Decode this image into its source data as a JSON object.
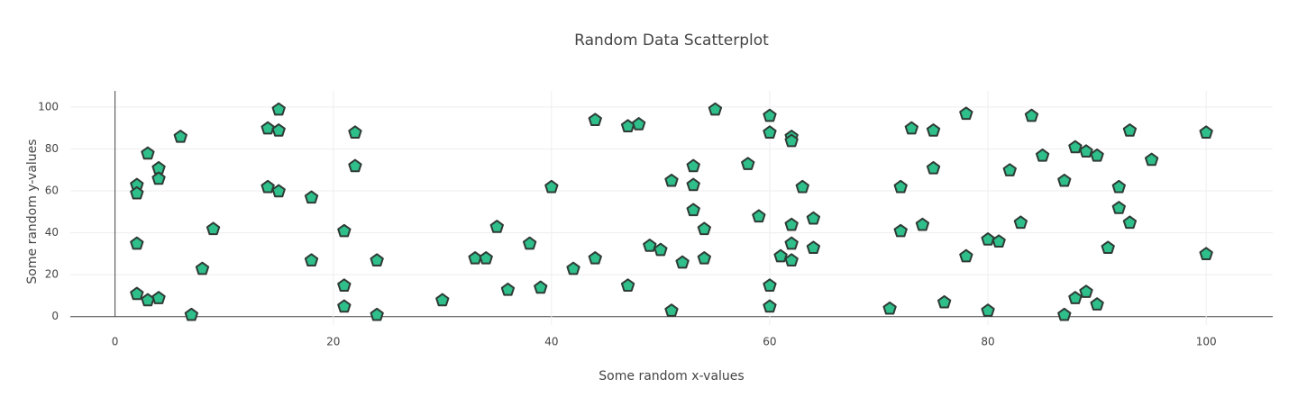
{
  "chart_data": {
    "type": "scatter",
    "title": "Random Data Scatterplot",
    "x_label": "Some random x-values",
    "y_label": "Some random y-values",
    "x": [
      2,
      2,
      2,
      2,
      3,
      3,
      4,
      4,
      4,
      6,
      7,
      8,
      9,
      14,
      14,
      15,
      15,
      15,
      18,
      18,
      21,
      21,
      21,
      22,
      22,
      24,
      24,
      30,
      33,
      34,
      35,
      36,
      38,
      39,
      40,
      42,
      44,
      44,
      47,
      47,
      48,
      49,
      50,
      51,
      51,
      52,
      53,
      53,
      53,
      54,
      54,
      55,
      58,
      59,
      60,
      60,
      60,
      60,
      61,
      62,
      62,
      62,
      62,
      62,
      63,
      64,
      64,
      71,
      72,
      72,
      73,
      74,
      75,
      75,
      76,
      78,
      78,
      80,
      80,
      81,
      82,
      83,
      84,
      85,
      87,
      87,
      88,
      88,
      89,
      89,
      90,
      90,
      91,
      92,
      92,
      93,
      93,
      95,
      100,
      100
    ],
    "values": [
      63,
      59,
      35,
      11,
      78,
      8,
      71,
      66,
      9,
      86,
      1,
      23,
      42,
      90,
      62,
      99,
      89,
      60,
      57,
      27,
      41,
      15,
      5,
      88,
      72,
      27,
      1,
      8,
      28,
      28,
      43,
      13,
      35,
      14,
      62,
      23,
      94,
      28,
      91,
      15,
      92,
      34,
      32,
      65,
      3,
      26,
      72,
      63,
      51,
      42,
      28,
      99,
      73,
      48,
      96,
      88,
      15,
      5,
      29,
      86,
      84,
      44,
      35,
      27,
      62,
      47,
      33,
      4,
      62,
      41,
      90,
      44,
      89,
      71,
      7,
      97,
      29,
      37,
      3,
      36,
      70,
      45,
      96,
      77,
      65,
      1,
      81,
      9,
      79,
      12,
      77,
      6,
      33,
      62,
      52,
      89,
      45,
      75,
      88,
      30
    ],
    "color": "#2ebf8b",
    "marker_line_color": "#2f3b35",
    "xlim": [
      -4.1,
      106.1
    ],
    "ylim": [
      -4,
      107.7
    ],
    "xticks": [
      0,
      20,
      40,
      60,
      80,
      100
    ],
    "yticks": [
      0,
      20,
      40,
      60,
      80,
      100
    ],
    "grid": true
  }
}
